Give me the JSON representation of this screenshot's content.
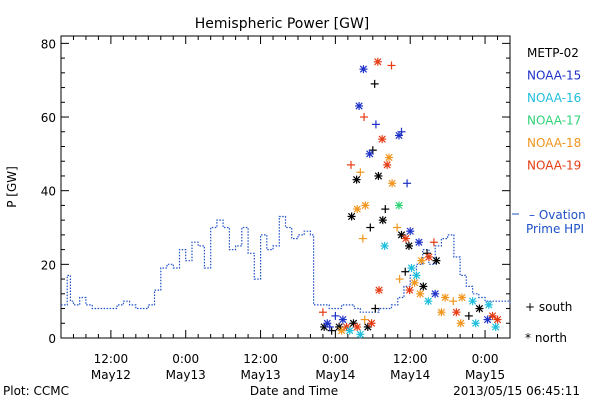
{
  "chart_data": {
    "type": "scatter",
    "title": "Hemispheric Power [GW]",
    "xlabel": "Date and Time",
    "ylabel": "P [GW]",
    "ylim": [
      0,
      82
    ],
    "xlim_hours_from_may12_00": [
      4,
      76
    ],
    "yticks": [
      0,
      20,
      40,
      60,
      80
    ],
    "xticks": [
      {
        "h": 12,
        "label1": "12:00",
        "label2": "May12"
      },
      {
        "h": 24,
        "label1": "0:00",
        "label2": "May13"
      },
      {
        "h": 36,
        "label1": "12:00",
        "label2": "May13"
      },
      {
        "h": 48,
        "label1": "0:00",
        "label2": "May14"
      },
      {
        "h": 60,
        "label1": "12:00",
        "label2": "May14"
      },
      {
        "h": 72,
        "label1": "0:00",
        "label2": "May15"
      }
    ],
    "legend": {
      "placement": "right",
      "entries": [
        {
          "name": "METP-02",
          "color": "#000000"
        },
        {
          "name": "NOAA-15",
          "color": "#1e32c8"
        },
        {
          "name": "NOAA-16",
          "color": "#1ebedc"
        },
        {
          "name": "NOAA-17",
          "color": "#32d278"
        },
        {
          "name": "NOAA-18",
          "color": "#f0961e"
        },
        {
          "name": "NOAA-19",
          "color": "#e63c14"
        }
      ],
      "ovation_label_1": "– Ovation",
      "ovation_label_2": "Prime HPI",
      "ovation_color": "#1e50c8",
      "south_label": "+ south",
      "north_label": "* north"
    },
    "ovation_series": {
      "name": "Ovation Prime HPI",
      "x": [
        4,
        5,
        5.5,
        6,
        7,
        8,
        9,
        10,
        11,
        12,
        13,
        14,
        15,
        16,
        17,
        18,
        19,
        20,
        21,
        22,
        23,
        24,
        25,
        26,
        27,
        28,
        29,
        30,
        31,
        32,
        33,
        34,
        35,
        36,
        37,
        38,
        39,
        40,
        41,
        42,
        43,
        44,
        44.5,
        46,
        47,
        48,
        49,
        50,
        51,
        52,
        53,
        54,
        55,
        56,
        57,
        58,
        59,
        60,
        61,
        62,
        63,
        64,
        65,
        66,
        67,
        68,
        69,
        70,
        71,
        72,
        73,
        74,
        75,
        76
      ],
      "y": [
        9,
        17,
        10,
        9,
        11,
        9,
        8,
        8,
        8,
        8,
        9,
        10,
        9,
        8,
        8,
        9,
        13,
        19,
        20,
        19,
        24,
        21,
        26,
        25,
        19,
        30,
        32,
        30,
        24,
        25,
        30,
        23,
        16,
        28,
        24,
        25,
        33,
        30,
        27,
        28,
        29,
        28,
        9,
        9,
        8,
        8,
        9,
        9,
        8,
        7,
        7,
        7,
        8,
        8,
        9,
        11,
        14,
        17,
        20,
        24,
        20,
        25,
        27,
        28,
        22,
        17,
        14,
        12,
        11,
        10,
        10,
        10,
        10,
        9
      ]
    },
    "scatter_points": [
      {
        "x": 54.8,
        "y": 75,
        "sat": "NOAA-19",
        "hemi": "north"
      },
      {
        "x": 57.0,
        "y": 74,
        "sat": "NOAA-19",
        "hemi": "south"
      },
      {
        "x": 52.5,
        "y": 73,
        "sat": "NOAA-15",
        "hemi": "north"
      },
      {
        "x": 54.3,
        "y": 69,
        "sat": "METP-02",
        "hemi": "south"
      },
      {
        "x": 51.8,
        "y": 63,
        "sat": "NOAA-15",
        "hemi": "north"
      },
      {
        "x": 52.6,
        "y": 60,
        "sat": "NOAA-19",
        "hemi": "south"
      },
      {
        "x": 54.5,
        "y": 58,
        "sat": "NOAA-15",
        "hemi": "south"
      },
      {
        "x": 58.6,
        "y": 56,
        "sat": "NOAA-15",
        "hemi": "south"
      },
      {
        "x": 58.2,
        "y": 55,
        "sat": "NOAA-15",
        "hemi": "north"
      },
      {
        "x": 55.5,
        "y": 54,
        "sat": "NOAA-19",
        "hemi": "north"
      },
      {
        "x": 54.0,
        "y": 51,
        "sat": "METP-02",
        "hemi": "south"
      },
      {
        "x": 53.5,
        "y": 50,
        "sat": "NOAA-15",
        "hemi": "north"
      },
      {
        "x": 56.6,
        "y": 49,
        "sat": "NOAA-18",
        "hemi": "north"
      },
      {
        "x": 56.3,
        "y": 47,
        "sat": "NOAA-19",
        "hemi": "north"
      },
      {
        "x": 50.5,
        "y": 47,
        "sat": "NOAA-19",
        "hemi": "south"
      },
      {
        "x": 52.0,
        "y": 45,
        "sat": "NOAA-18",
        "hemi": "south"
      },
      {
        "x": 54.9,
        "y": 44,
        "sat": "METP-02",
        "hemi": "north"
      },
      {
        "x": 51.4,
        "y": 43,
        "sat": "METP-02",
        "hemi": "north"
      },
      {
        "x": 57.1,
        "y": 42,
        "sat": "NOAA-18",
        "hemi": "north"
      },
      {
        "x": 59.5,
        "y": 42,
        "sat": "NOAA-15",
        "hemi": "south"
      },
      {
        "x": 52.8,
        "y": 36,
        "sat": "NOAA-18",
        "hemi": "north"
      },
      {
        "x": 58.2,
        "y": 36,
        "sat": "NOAA-17",
        "hemi": "north"
      },
      {
        "x": 56.0,
        "y": 35,
        "sat": "METP-02",
        "hemi": "south"
      },
      {
        "x": 51.5,
        "y": 35,
        "sat": "NOAA-18",
        "hemi": "north"
      },
      {
        "x": 50.6,
        "y": 33,
        "sat": "METP-02",
        "hemi": "north"
      },
      {
        "x": 55.6,
        "y": 32,
        "sat": "METP-02",
        "hemi": "north"
      },
      {
        "x": 53.6,
        "y": 30,
        "sat": "METP-02",
        "hemi": "south"
      },
      {
        "x": 57.9,
        "y": 30,
        "sat": "NOAA-18",
        "hemi": "south"
      },
      {
        "x": 60.0,
        "y": 29,
        "sat": "NOAA-15",
        "hemi": "north"
      },
      {
        "x": 58.6,
        "y": 28,
        "sat": "METP-02",
        "hemi": "north"
      },
      {
        "x": 59.3,
        "y": 27,
        "sat": "NOAA-19",
        "hemi": "north"
      },
      {
        "x": 52.4,
        "y": 27,
        "sat": "NOAA-18",
        "hemi": "south"
      },
      {
        "x": 61.4,
        "y": 26,
        "sat": "NOAA-15",
        "hemi": "north"
      },
      {
        "x": 55.9,
        "y": 25,
        "sat": "NOAA-16",
        "hemi": "north"
      },
      {
        "x": 59.8,
        "y": 25,
        "sat": "METP-02",
        "hemi": "north"
      },
      {
        "x": 63.8,
        "y": 26,
        "sat": "NOAA-19",
        "hemi": "south"
      },
      {
        "x": 62.7,
        "y": 23,
        "sat": "METP-02",
        "hemi": "south"
      },
      {
        "x": 63.0,
        "y": 22,
        "sat": "NOAA-19",
        "hemi": "north"
      },
      {
        "x": 61.8,
        "y": 21,
        "sat": "NOAA-18",
        "hemi": "north"
      },
      {
        "x": 60.2,
        "y": 19,
        "sat": "NOAA-16",
        "hemi": "north"
      },
      {
        "x": 64.2,
        "y": 21,
        "sat": "METP-02",
        "hemi": "north"
      },
      {
        "x": 59.2,
        "y": 18,
        "sat": "METP-02",
        "hemi": "south"
      },
      {
        "x": 61.0,
        "y": 17,
        "sat": "NOAA-16",
        "hemi": "north"
      },
      {
        "x": 58.3,
        "y": 16,
        "sat": "NOAA-18",
        "hemi": "south"
      },
      {
        "x": 60.7,
        "y": 15,
        "sat": "NOAA-18",
        "hemi": "north"
      },
      {
        "x": 62.1,
        "y": 14,
        "sat": "METP-02",
        "hemi": "north"
      },
      {
        "x": 59.9,
        "y": 13,
        "sat": "NOAA-19",
        "hemi": "north"
      },
      {
        "x": 61.6,
        "y": 12,
        "sat": "NOAA-18",
        "hemi": "north"
      },
      {
        "x": 64.0,
        "y": 12,
        "sat": "NOAA-15",
        "hemi": "north"
      },
      {
        "x": 65.6,
        "y": 11,
        "sat": "NOAA-18",
        "hemi": "north"
      },
      {
        "x": 66.9,
        "y": 10,
        "sat": "NOAA-18",
        "hemi": "south"
      },
      {
        "x": 62.9,
        "y": 10,
        "sat": "NOAA-16",
        "hemi": "north"
      },
      {
        "x": 68.3,
        "y": 11,
        "sat": "NOAA-18",
        "hemi": "north"
      },
      {
        "x": 70.0,
        "y": 10,
        "sat": "NOAA-16",
        "hemi": "north"
      },
      {
        "x": 72.6,
        "y": 9,
        "sat": "NOAA-16",
        "hemi": "north"
      },
      {
        "x": 71.1,
        "y": 8,
        "sat": "METP-02",
        "hemi": "north"
      },
      {
        "x": 65.0,
        "y": 7,
        "sat": "NOAA-18",
        "hemi": "north"
      },
      {
        "x": 67.4,
        "y": 7,
        "sat": "NOAA-19",
        "hemi": "north"
      },
      {
        "x": 69.4,
        "y": 6,
        "sat": "METP-02",
        "hemi": "south"
      },
      {
        "x": 73.2,
        "y": 6,
        "sat": "NOAA-19",
        "hemi": "north"
      },
      {
        "x": 74.0,
        "y": 5,
        "sat": "NOAA-19",
        "hemi": "north"
      },
      {
        "x": 72.4,
        "y": 5,
        "sat": "NOAA-15",
        "hemi": "north"
      },
      {
        "x": 68.1,
        "y": 4,
        "sat": "NOAA-18",
        "hemi": "north"
      },
      {
        "x": 70.5,
        "y": 4,
        "sat": "NOAA-16",
        "hemi": "north"
      },
      {
        "x": 73.7,
        "y": 3,
        "sat": "NOAA-16",
        "hemi": "north"
      },
      {
        "x": 46.0,
        "y": 7,
        "sat": "NOAA-19",
        "hemi": "south"
      },
      {
        "x": 46.2,
        "y": 3,
        "sat": "METP-02",
        "hemi": "north"
      },
      {
        "x": 46.7,
        "y": 4,
        "sat": "NOAA-15",
        "hemi": "north"
      },
      {
        "x": 47.4,
        "y": 2,
        "sat": "METP-02",
        "hemi": "south"
      },
      {
        "x": 48.0,
        "y": 6,
        "sat": "NOAA-15",
        "hemi": "south"
      },
      {
        "x": 48.6,
        "y": 3,
        "sat": "METP-02",
        "hemi": "north"
      },
      {
        "x": 49.2,
        "y": 5,
        "sat": "NOAA-15",
        "hemi": "north"
      },
      {
        "x": 49.8,
        "y": 3,
        "sat": "NOAA-19",
        "hemi": "north"
      },
      {
        "x": 50.3,
        "y": 2,
        "sat": "NOAA-16",
        "hemi": "north"
      },
      {
        "x": 50.9,
        "y": 4,
        "sat": "METP-02",
        "hemi": "north"
      },
      {
        "x": 51.5,
        "y": 3,
        "sat": "NOAA-19",
        "hemi": "north"
      },
      {
        "x": 52.0,
        "y": 1,
        "sat": "NOAA-16",
        "hemi": "north"
      },
      {
        "x": 52.7,
        "y": 5,
        "sat": "NOAA-18",
        "hemi": "south"
      },
      {
        "x": 53.2,
        "y": 3,
        "sat": "METP-02",
        "hemi": "north"
      },
      {
        "x": 53.8,
        "y": 4,
        "sat": "NOAA-19",
        "hemi": "north"
      },
      {
        "x": 54.4,
        "y": 8,
        "sat": "METP-02",
        "hemi": "south"
      },
      {
        "x": 55.0,
        "y": 13,
        "sat": "NOAA-19",
        "hemi": "north"
      },
      {
        "x": 47.1,
        "y": 3,
        "sat": "NOAA-15",
        "hemi": "south"
      },
      {
        "x": 49.0,
        "y": 2,
        "sat": "NOAA-18",
        "hemi": "north"
      }
    ]
  },
  "footer": {
    "plot_label": "Plot: CCMC",
    "timestamp": "2013/05/15 06:45:11"
  }
}
